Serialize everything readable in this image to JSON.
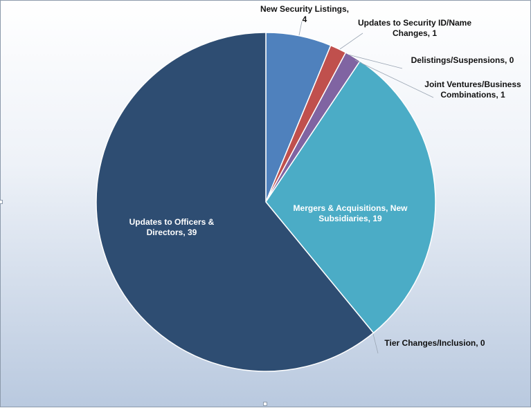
{
  "chart_data": {
    "type": "pie",
    "title": "",
    "slices": [
      {
        "label_lines": [
          "New Security Listings,",
          "4"
        ],
        "value": 4,
        "color": "#4f81bd"
      },
      {
        "label_lines": [
          "Updates to Security ID/Name",
          "Changes, 1"
        ],
        "value": 1,
        "color": "#c0504d"
      },
      {
        "label_lines": [
          "Delistings/Suspensions, 0"
        ],
        "value": 0,
        "color": "#9bbb59"
      },
      {
        "label_lines": [
          "Joint Ventures/Business",
          "Combinations, 1"
        ],
        "value": 1,
        "color": "#8064a2"
      },
      {
        "label_lines": [
          "Mergers & Acquisitions, New",
          "Subsidiaries, 19"
        ],
        "value": 19,
        "color": "#4bacc6"
      },
      {
        "label_lines": [
          "Tier Changes/Inclusion, 0"
        ],
        "value": 0,
        "color": "#f79646"
      },
      {
        "label_lines": [
          "Updates to Officers &",
          "Directors, 39"
        ],
        "value": 39,
        "color": "#2e4d72"
      }
    ]
  }
}
